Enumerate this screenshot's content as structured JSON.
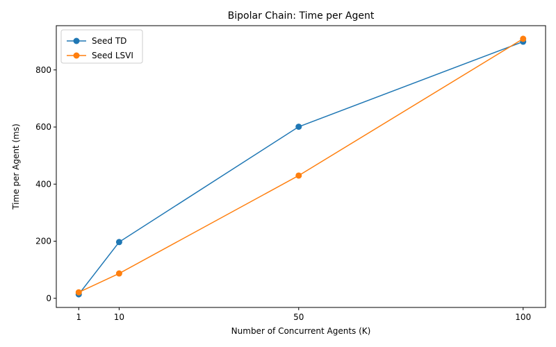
{
  "chart_data": {
    "type": "line",
    "title": "Bipolar Chain: Time per Agent",
    "xlabel": "Number of Concurrent Agents (K)",
    "ylabel": "Time per Agent (ms)",
    "x": [
      1,
      10,
      50,
      100
    ],
    "xticks": [
      1,
      10,
      50,
      100
    ],
    "yticks": [
      0,
      200,
      400,
      600,
      800
    ],
    "xlim": [
      -4,
      105
    ],
    "ylim": [
      -32,
      955
    ],
    "grid": false,
    "legend": "top-left",
    "series": [
      {
        "name": "Seed TD",
        "color": "#1f77b4",
        "marker": "circle",
        "values": [
          14,
          197,
          601,
          899
        ]
      },
      {
        "name": "Seed LSVI",
        "color": "#ff7f0e",
        "marker": "circle",
        "values": [
          21,
          87,
          430,
          909
        ]
      }
    ]
  }
}
